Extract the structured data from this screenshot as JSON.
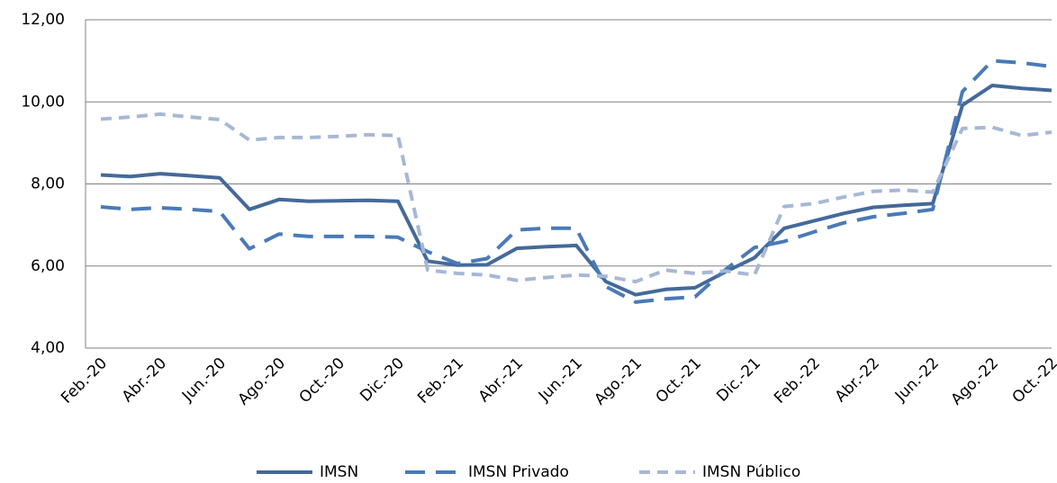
{
  "chart_data": {
    "type": "line",
    "categories": [
      "Feb.-20",
      null,
      "Abr.-20",
      null,
      "Jun.-20",
      null,
      "Ago.-20",
      null,
      "Oct.-20",
      null,
      "Dic.-20",
      null,
      "Feb.-21",
      null,
      "Abr.-21",
      null,
      "Jun.-21",
      null,
      "Ago.-21",
      null,
      "Oct.-21",
      null,
      "Dic.-21",
      null,
      "Feb.-22",
      null,
      "Abr.-22",
      null,
      "Jun.-22",
      null,
      "Ago.-22",
      null,
      "Oct.-22"
    ],
    "series": [
      {
        "name": "IMSN",
        "color": "#44699a",
        "dash": "solid",
        "values": [
          8.22,
          8.18,
          8.25,
          8.2,
          8.15,
          7.38,
          7.62,
          7.58,
          7.59,
          7.6,
          7.58,
          6.12,
          6.02,
          6.03,
          6.43,
          6.47,
          6.5,
          5.62,
          5.3,
          5.43,
          5.47,
          5.85,
          6.2,
          6.92,
          7.1,
          7.28,
          7.43,
          7.48,
          7.52,
          9.92,
          10.4,
          10.33,
          10.28
        ]
      },
      {
        "name": "IMSN Privado",
        "color": "#4a7ab8",
        "dash": "long",
        "values": [
          7.44,
          7.38,
          7.42,
          7.38,
          7.33,
          6.42,
          6.78,
          6.72,
          6.72,
          6.72,
          6.7,
          6.35,
          6.06,
          6.18,
          6.88,
          6.92,
          6.92,
          5.5,
          5.12,
          5.2,
          5.25,
          5.9,
          6.45,
          6.6,
          6.83,
          7.05,
          7.2,
          7.28,
          7.38,
          10.25,
          11.0,
          10.95,
          10.86
        ]
      },
      {
        "name": "IMSN Público",
        "color": "#a6b8d6",
        "dash": "short",
        "values": [
          9.58,
          9.63,
          9.7,
          9.63,
          9.57,
          9.07,
          9.13,
          9.13,
          9.16,
          9.2,
          9.18,
          5.9,
          5.82,
          5.78,
          5.65,
          5.72,
          5.78,
          5.75,
          5.62,
          5.9,
          5.82,
          5.88,
          5.78,
          7.45,
          7.52,
          7.68,
          7.82,
          7.85,
          7.8,
          9.35,
          9.38,
          9.18,
          9.26
        ]
      }
    ],
    "ylim": [
      4,
      12
    ],
    "yticks": [
      {
        "value": 4,
        "label": "4,00"
      },
      {
        "value": 6,
        "label": "6,00"
      },
      {
        "value": 8,
        "label": "8,00"
      },
      {
        "value": 10,
        "label": "10,00"
      },
      {
        "value": 12,
        "label": "12,00"
      }
    ],
    "grid": true,
    "legend": "bottom"
  }
}
